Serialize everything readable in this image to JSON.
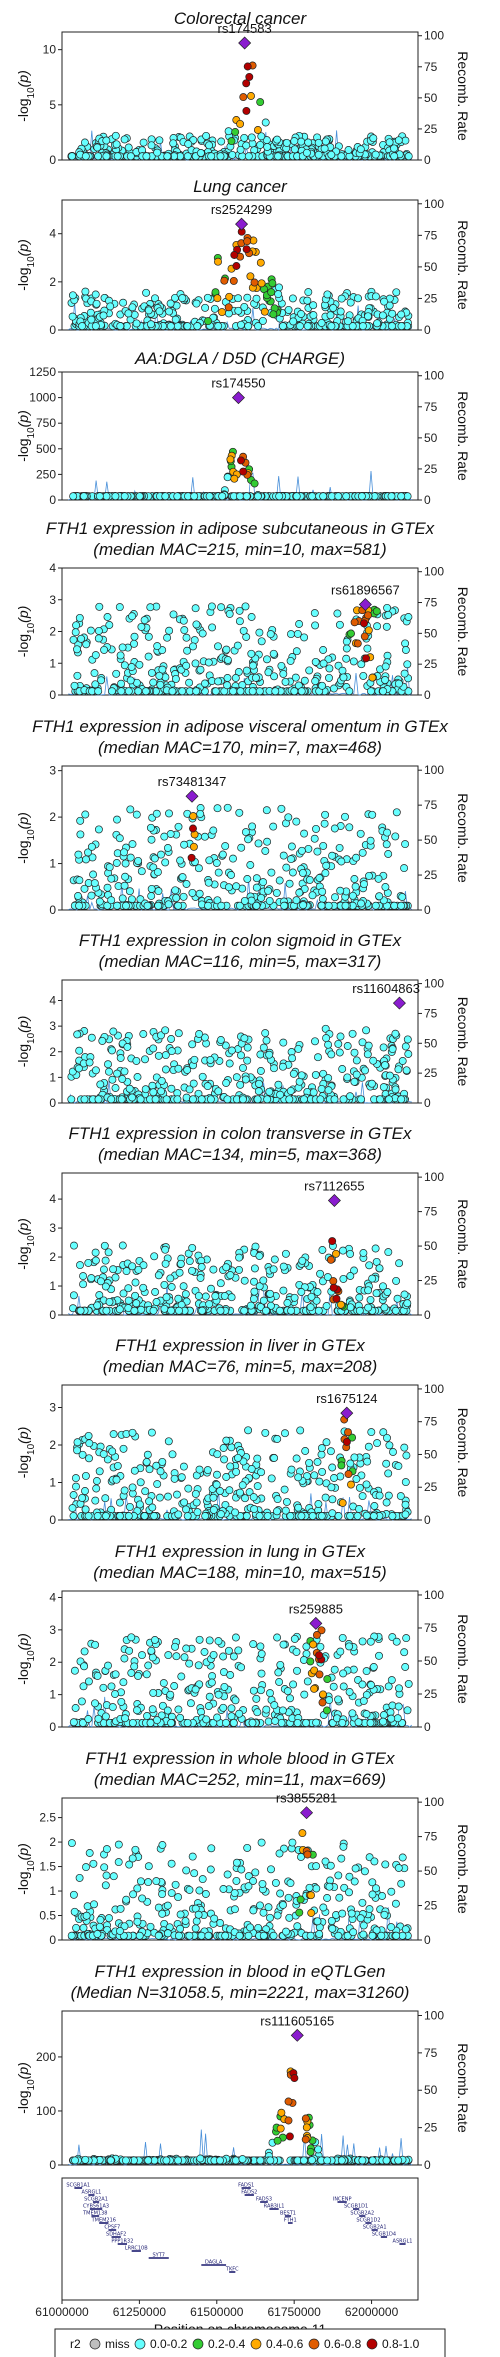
{
  "chart_data": [
    {
      "type": "scatter",
      "title_lines": [
        "Colorectal cancer"
      ],
      "ylabel": "-log10(p)",
      "y2label": "Recomb. Rate",
      "ylim": [
        0,
        11.6
      ],
      "yticks": [
        0,
        5,
        10
      ],
      "y2ticks": [
        0,
        25,
        50,
        75,
        100
      ],
      "lead_snp": "rs174583",
      "lead_x": 61590000,
      "lead_y": 10.6,
      "peak_x": 61600000,
      "base_max": 2.2,
      "peak_height": 10,
      "peak_width": 70000,
      "seed": 11
    },
    {
      "type": "scatter",
      "title_lines": [
        "Lung cancer"
      ],
      "ylabel": "-log10(p)",
      "y2label": "Recomb. Rate",
      "ylim": [
        0,
        5.4
      ],
      "yticks": [
        0,
        2,
        4
      ],
      "y2ticks": [
        0,
        25,
        50,
        75,
        100
      ],
      "lead_snp": "rs2524299",
      "lead_x": 61580000,
      "lead_y": 4.4,
      "peak_x": 61580000,
      "base_max": 1.6,
      "peak_height": 3.9,
      "peak_width": 150000,
      "seed": 23
    },
    {
      "type": "scatter",
      "title_lines": [
        "AA:DGLA / D5D (CHARGE)"
      ],
      "ylabel": "-log10(p)",
      "y2label": "Recomb. Rate",
      "ylim": [
        0,
        1250
      ],
      "yticks": [
        0,
        250,
        500,
        750,
        1000,
        1250
      ],
      "y2ticks": [
        0,
        25,
        50,
        75,
        100
      ],
      "lead_snp": "rs174550",
      "lead_x": 61570000,
      "lead_y": 1000,
      "peak_x": 61580000,
      "base_max": 15,
      "peak_height": 950,
      "peak_width": 60000,
      "seed": 37
    },
    {
      "type": "scatter",
      "title_lines": [
        "FTH1 expression in adipose subcutaneous in GTEx",
        "(median MAC=215, min=10, max=581)"
      ],
      "ylabel": "-log10(p)",
      "y2label": "Recomb. Rate",
      "ylim": [
        0,
        4
      ],
      "yticks": [
        0,
        1,
        2,
        3,
        4
      ],
      "y2ticks": [
        0,
        25,
        50,
        75,
        100
      ],
      "lead_snp": "rs61896567",
      "lead_x": 61980000,
      "lead_y": 2.85,
      "peak_x": 61970000,
      "base_max": 2.8,
      "peak_height": 2.6,
      "peak_width": 60000,
      "seed": 41
    },
    {
      "type": "scatter",
      "title_lines": [
        "FTH1 expression in adipose visceral omentum in GTEx",
        "(median MAC=170, min=7, max=468)"
      ],
      "ylabel": "-log10(p)",
      "y2label": "Recomb. Rate",
      "ylim": [
        0,
        3.1
      ],
      "yticks": [
        0,
        1,
        2,
        3
      ],
      "y2ticks": [
        0,
        25,
        50,
        75,
        100
      ],
      "lead_snp": "rs73481347",
      "lead_x": 61420000,
      "lead_y": 2.45,
      "peak_x": 61420000,
      "base_max": 2.2,
      "peak_height": 1.7,
      "peak_width": 20000,
      "seed": 53
    },
    {
      "type": "scatter",
      "title_lines": [
        "FTH1 expression in colon sigmoid in GTEx",
        "(median MAC=116, min=5, max=317)"
      ],
      "ylabel": "-log10(p)",
      "y2label": "Recomb. Rate",
      "ylim": [
        0,
        4.8
      ],
      "yticks": [
        0,
        1,
        2,
        3,
        4
      ],
      "y2ticks": [
        0,
        25,
        50,
        75,
        100
      ],
      "lead_snp": "rs11604863",
      "lead_x": 62090000,
      "lead_y": 3.9,
      "peak_x": 62090000,
      "base_max": 2.9,
      "peak_height": 0,
      "peak_width": 20000,
      "seed": 67
    },
    {
      "type": "scatter",
      "title_lines": [
        "FTH1 expression in colon transverse in GTEx",
        "(median MAC=134, min=5, max=368)"
      ],
      "ylabel": "-log10(p)",
      "y2label": "Recomb. Rate",
      "ylim": [
        0,
        4.9
      ],
      "yticks": [
        0,
        1,
        2,
        3,
        4
      ],
      "y2ticks": [
        0,
        25,
        50,
        75,
        100
      ],
      "lead_snp": "rs7112655",
      "lead_x": 61880000,
      "lead_y": 3.95,
      "peak_x": 61880000,
      "base_max": 2.4,
      "peak_height": 1.2,
      "peak_width": 40000,
      "seed": 79
    },
    {
      "type": "scatter",
      "title_lines": [
        "FTH1 expression in liver in GTEx",
        "(median MAC=76, min=5, max=208)"
      ],
      "ylabel": "-log10(p)",
      "y2label": "Recomb. Rate",
      "ylim": [
        0,
        3.6
      ],
      "yticks": [
        0,
        1,
        2,
        3
      ],
      "y2ticks": [
        0,
        25,
        50,
        75,
        100
      ],
      "lead_snp": "rs1675124",
      "lead_x": 61920000,
      "lead_y": 2.85,
      "peak_x": 61920000,
      "base_max": 2.4,
      "peak_height": 2.3,
      "peak_width": 25000,
      "seed": 83
    },
    {
      "type": "scatter",
      "title_lines": [
        "FTH1 expression in lung in GTEx",
        "(median MAC=188, min=10, max=515)"
      ],
      "ylabel": "-log10(p)",
      "y2label": "Recomb. Rate",
      "ylim": [
        0,
        4.2
      ],
      "yticks": [
        0,
        1,
        2,
        3,
        4
      ],
      "y2ticks": [
        0,
        25,
        50,
        75,
        100
      ],
      "lead_snp": "rs259885",
      "lead_x": 61820000,
      "lead_y": 3.2,
      "peak_x": 61830000,
      "base_max": 2.8,
      "peak_height": 2.3,
      "peak_width": 40000,
      "seed": 97
    },
    {
      "type": "scatter",
      "title_lines": [
        "FTH1 expression in whole blood in GTEx",
        "(median MAC=252, min=11, max=669)"
      ],
      "ylabel": "-log10(p)",
      "y2label": "Recomb. Rate",
      "ylim": [
        0,
        2.9
      ],
      "yticks": [
        0,
        0.5,
        1,
        1.5,
        2,
        2.5
      ],
      "y2ticks": [
        0,
        25,
        50,
        75,
        100
      ],
      "lead_snp": "rs3855281",
      "lead_x": 61790000,
      "lead_y": 2.6,
      "peak_x": 61790000,
      "base_max": 2.0,
      "peak_height": 2.1,
      "peak_width": 30000,
      "seed": 101
    },
    {
      "type": "scatter",
      "title_lines": [
        "FTH1 expression in blood in eQTLGen",
        "(Median N=31058.5, min=2221, max=31260)"
      ],
      "ylabel": "-log10(p)",
      "y2label": "Recomb. Rate",
      "ylim": [
        0,
        285
      ],
      "yticks": [
        0,
        100,
        200
      ],
      "y2ticks": [
        0,
        25,
        50,
        75,
        100
      ],
      "lead_snp": "rs111605165",
      "lead_x": 61760000,
      "lead_y": 240,
      "peak_x": 61750000,
      "base_max": 12,
      "peak_height": 190,
      "peak_width": 90000,
      "seed": 113
    }
  ],
  "x_axis": {
    "label": "Position on chromosome 11",
    "xlim": [
      61000000,
      62150000
    ],
    "ticks": [
      61000000,
      61250000,
      61500000,
      61750000,
      62000000
    ]
  },
  "genes": [
    {
      "name": "SCGB1A1",
      "start": 61040000,
      "end": 61065000,
      "row": 0
    },
    {
      "name": "ASRGL1",
      "start": 61085000,
      "end": 61105000,
      "row": 1
    },
    {
      "name": "SCGB2A1",
      "start": 61100000,
      "end": 61120000,
      "row": 2
    },
    {
      "name": "CYB561A3",
      "start": 61090000,
      "end": 61130000,
      "row": 3
    },
    {
      "name": "TMEM138",
      "start": 61095000,
      "end": 61120000,
      "row": 4
    },
    {
      "name": "TMEM216",
      "start": 61120000,
      "end": 61150000,
      "row": 5
    },
    {
      "name": "CPSF7",
      "start": 61150000,
      "end": 61175000,
      "row": 6
    },
    {
      "name": "SDHAF2",
      "start": 61160000,
      "end": 61190000,
      "row": 7
    },
    {
      "name": "PPP1R32",
      "start": 61180000,
      "end": 61210000,
      "row": 8
    },
    {
      "name": "LRRC10B",
      "start": 61225000,
      "end": 61255000,
      "row": 9
    },
    {
      "name": "SYT7",
      "start": 61280000,
      "end": 61345000,
      "row": 10
    },
    {
      "name": "DAGLA",
      "start": 61450000,
      "end": 61530000,
      "row": 11
    },
    {
      "name": "TKFC",
      "start": 61540000,
      "end": 61560000,
      "row": 12
    },
    {
      "name": "FADS1",
      "start": 61580000,
      "end": 61610000,
      "row": 0
    },
    {
      "name": "FADS2",
      "start": 61590000,
      "end": 61620000,
      "row": 1
    },
    {
      "name": "FADS3",
      "start": 61640000,
      "end": 61665000,
      "row": 2
    },
    {
      "name": "RAB3IL1",
      "start": 61670000,
      "end": 61700000,
      "row": 3
    },
    {
      "name": "BEST1",
      "start": 61720000,
      "end": 61740000,
      "row": 4
    },
    {
      "name": "FTH1",
      "start": 61730000,
      "end": 61745000,
      "row": 5
    },
    {
      "name": "INCENP",
      "start": 61890000,
      "end": 61920000,
      "row": 2
    },
    {
      "name": "SCGB1D1",
      "start": 61940000,
      "end": 61960000,
      "row": 3
    },
    {
      "name": "SCGB2A2",
      "start": 61960000,
      "end": 61980000,
      "row": 4
    },
    {
      "name": "SCGB1D2",
      "start": 61980000,
      "end": 62000000,
      "row": 5
    },
    {
      "name": "SCGB2A1",
      "start": 62000000,
      "end": 62020000,
      "row": 6
    },
    {
      "name": "SCGB1D4",
      "start": 62030000,
      "end": 62050000,
      "row": 7
    },
    {
      "name": "ASRGL1",
      "start": 62090000,
      "end": 62110000,
      "row": 8
    }
  ],
  "legend": {
    "title": "r2",
    "items": [
      {
        "label": "miss",
        "color": "#bfbfbf"
      },
      {
        "label": "0.0-0.2",
        "color": "#66ffff"
      },
      {
        "label": "0.2-0.4",
        "color": "#33cc33"
      },
      {
        "label": "0.4-0.6",
        "color": "#ffaa00"
      },
      {
        "label": "0.6-0.8",
        "color": "#e05c00"
      },
      {
        "label": "0.8-1.0",
        "color": "#b30000"
      }
    ]
  },
  "colors": {
    "point_fill": "#66ffff",
    "lead_fill": "#8a1ccf",
    "recomb_line": "#4a90d9",
    "r2_bins": [
      "#66ffff",
      "#33cc33",
      "#ffaa00",
      "#e05c00",
      "#b30000"
    ]
  }
}
